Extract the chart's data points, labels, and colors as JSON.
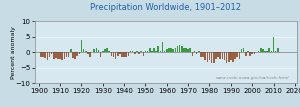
{
  "title": "Precipitation Worldwide, 1901–2012",
  "ylabel": "Percent anomaly",
  "watermark": "www.ncdc.noaa.gov/oa/ncdc.html",
  "xlim": [
    1898,
    2021
  ],
  "ylim": [
    -10,
    10
  ],
  "yticks": [
    -10,
    -5,
    0,
    5,
    10
  ],
  "xticks": [
    1900,
    1910,
    1920,
    1930,
    1940,
    1950,
    1960,
    1970,
    1980,
    1990,
    2000,
    2010,
    2020
  ],
  "fig_bg": "#c8dce6",
  "plot_bg": "#d8e8f0",
  "title_color": "#2060a8",
  "pos_color": "#3a9a40",
  "neg_color": "#9a6040",
  "bar_width": 0.75,
  "years": [
    1901,
    1902,
    1903,
    1904,
    1905,
    1906,
    1907,
    1908,
    1909,
    1910,
    1911,
    1912,
    1913,
    1914,
    1915,
    1916,
    1917,
    1918,
    1919,
    1920,
    1921,
    1922,
    1923,
    1924,
    1925,
    1926,
    1927,
    1928,
    1929,
    1930,
    1931,
    1932,
    1933,
    1934,
    1935,
    1936,
    1937,
    1938,
    1939,
    1940,
    1941,
    1942,
    1943,
    1944,
    1945,
    1946,
    1947,
    1948,
    1949,
    1950,
    1951,
    1952,
    1953,
    1954,
    1955,
    1956,
    1957,
    1958,
    1959,
    1960,
    1961,
    1962,
    1963,
    1964,
    1965,
    1966,
    1967,
    1968,
    1969,
    1970,
    1971,
    1972,
    1973,
    1974,
    1975,
    1976,
    1977,
    1978,
    1979,
    1980,
    1981,
    1982,
    1983,
    1984,
    1985,
    1986,
    1987,
    1988,
    1989,
    1990,
    1991,
    1992,
    1993,
    1994,
    1995,
    1996,
    1997,
    1998,
    1999,
    2000,
    2001,
    2002,
    2003,
    2004,
    2005,
    2006,
    2007,
    2008,
    2009,
    2010,
    2011,
    2012
  ],
  "values": [
    -1.5,
    -1.5,
    -1.8,
    -2.5,
    -1.5,
    -0.5,
    -2.0,
    -1.8,
    -2.2,
    -2.0,
    -2.5,
    -2.0,
    -1.5,
    -1.5,
    1.0,
    -1.8,
    -2.0,
    -1.2,
    -0.5,
    4.0,
    1.2,
    0.5,
    -0.5,
    -1.5,
    0.0,
    1.0,
    1.5,
    0.8,
    -1.5,
    0.5,
    1.0,
    1.5,
    0.5,
    -1.0,
    -1.5,
    -2.0,
    -1.0,
    -0.5,
    -1.5,
    -1.5,
    -1.5,
    -1.0,
    0.5,
    0.5,
    -0.5,
    0.5,
    -0.5,
    0.5,
    -1.0,
    0.5,
    0.5,
    1.5,
    0.5,
    1.5,
    0.5,
    2.0,
    0.5,
    3.5,
    0.5,
    1.0,
    1.5,
    1.5,
    1.0,
    1.5,
    2.0,
    2.5,
    2.0,
    1.5,
    1.5,
    1.0,
    1.5,
    -1.0,
    0.5,
    -0.5,
    0.5,
    -1.5,
    -1.5,
    -2.5,
    -3.0,
    -2.5,
    -3.5,
    -3.5,
    -2.0,
    -1.5,
    -2.0,
    -2.0,
    -2.5,
    -3.5,
    -3.0,
    -2.5,
    -3.0,
    -2.0,
    -1.5,
    -2.0,
    1.0,
    1.5,
    -1.0,
    0.5,
    -1.0,
    -0.5,
    -0.5,
    0.0,
    0.5,
    1.5,
    1.0,
    0.5,
    0.5,
    1.5,
    0.5,
    5.0,
    0.5,
    1.5
  ]
}
